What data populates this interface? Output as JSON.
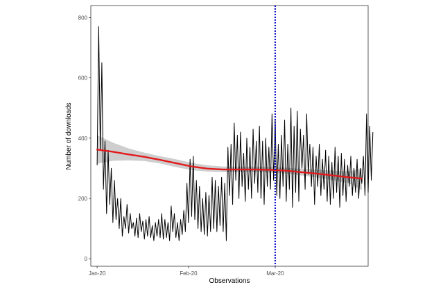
{
  "chart_data": {
    "type": "line",
    "xlabel": "Observations",
    "ylabel": "Number of downloads",
    "ylim": [
      -25,
      840
    ],
    "xlim": [
      -4,
      172
    ],
    "x_ticks": [
      {
        "label": "Jan-20",
        "day": 0
      },
      {
        "label": "Feb-20",
        "day": 58
      },
      {
        "label": "Mar-20",
        "day": 113
      }
    ],
    "y_ticks": [
      0,
      200,
      400,
      600,
      800
    ],
    "grid": false,
    "legend": "none",
    "vline": {
      "day": 113,
      "color": "#0000cc",
      "style": "dotted"
    },
    "series": [
      {
        "color": "#000000",
        "values": [
          310,
          770,
          360,
          650,
          230,
          390,
          150,
          360,
          180,
          300,
          120,
          260,
          130,
          200,
          100,
          200,
          75,
          140,
          100,
          180,
          85,
          150,
          100,
          120,
          75,
          135,
          70,
          150,
          90,
          125,
          65,
          130,
          75,
          140,
          70,
          110,
          60,
          120,
          75,
          130,
          70,
          150,
          65,
          130,
          70,
          120,
          60,
          175,
          90,
          150,
          70,
          120,
          60,
          130,
          80,
          160,
          90,
          250,
          120,
          330,
          140,
          340,
          130,
          260,
          100,
          240,
          90,
          200,
          80,
          220,
          75,
          210,
          90,
          270,
          100,
          260,
          90,
          240,
          110,
          270,
          90,
          250,
          60,
          370,
          210,
          380,
          180,
          450,
          260,
          410,
          200,
          420,
          240,
          350,
          190,
          400,
          230,
          370,
          200,
          430,
          250,
          390,
          220,
          440,
          200,
          390,
          180,
          400,
          240,
          370,
          230,
          480,
          260,
          460,
          210,
          380,
          200,
          410,
          240,
          460,
          190,
          380,
          230,
          500,
          170,
          440,
          220,
          490,
          190,
          430,
          300,
          410,
          230,
          480,
          280,
          380,
          240,
          370,
          180,
          340,
          240,
          380,
          210,
          330,
          230,
          360,
          190,
          340,
          180,
          320,
          200,
          370,
          220,
          340,
          170,
          350,
          210,
          330,
          190,
          310,
          240,
          340,
          210,
          300,
          220,
          330,
          200,
          300,
          250,
          340,
          210,
          480,
          220,
          440,
          260,
          420
        ]
      }
    ],
    "trend": {
      "color": "#e31a1c",
      "days": [
        0,
        10,
        20,
        30,
        40,
        50,
        60,
        70,
        80,
        90,
        100,
        110,
        120,
        130,
        140,
        150,
        160,
        168
      ],
      "values": [
        362,
        355,
        346,
        338,
        328,
        317,
        306,
        299,
        296,
        296,
        296,
        295,
        292,
        287,
        282,
        276,
        270,
        266
      ],
      "band_upper": [
        410,
        385,
        366,
        352,
        340,
        330,
        318,
        310,
        306,
        305,
        305,
        304,
        302,
        298,
        295,
        292,
        290,
        300
      ],
      "band_lower": [
        315,
        325,
        326,
        324,
        316,
        304,
        294,
        289,
        287,
        287,
        287,
        286,
        283,
        276,
        269,
        260,
        250,
        228
      ]
    }
  }
}
